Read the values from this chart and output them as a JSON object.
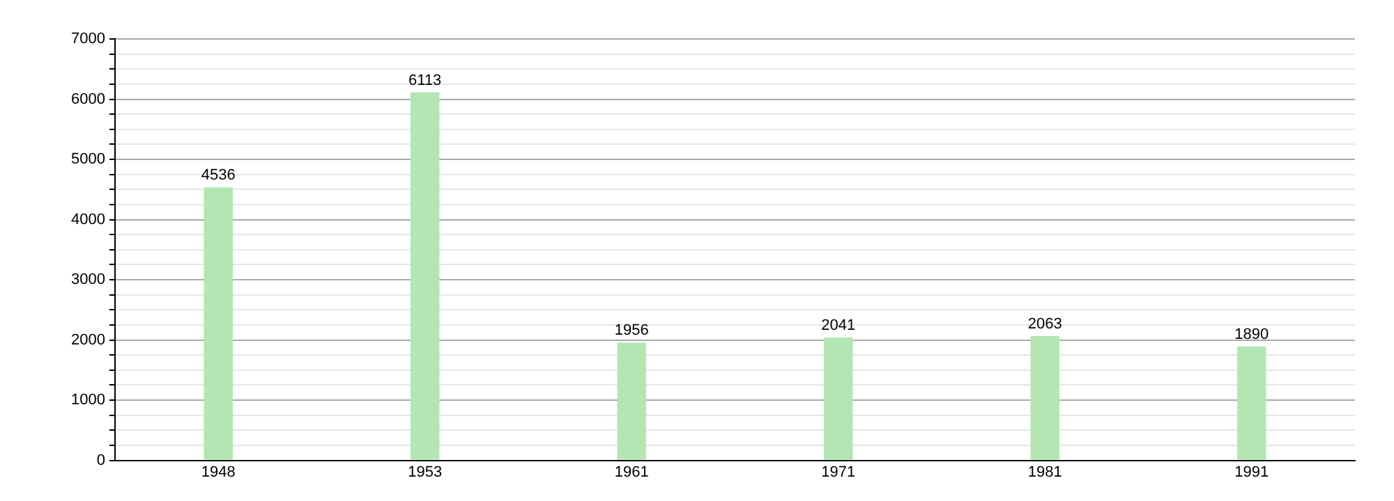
{
  "chart_data": {
    "type": "bar",
    "categories": [
      "1948",
      "1953",
      "1961",
      "1971",
      "1981",
      "1991"
    ],
    "values": [
      4536,
      6113,
      1956,
      2041,
      2063,
      1890
    ],
    "color": "#b3e6b3",
    "ylim": [
      0,
      7000
    ],
    "yticks": [
      0,
      {
        "value": 250,
        "label": null
      },
      {
        "value": 500,
        "label": null
      },
      {
        "value": 750,
        "label": null
      },
      1000,
      {
        "value": 1250,
        "label": null
      },
      {
        "value": 1500,
        "label": null
      },
      {
        "value": 1750,
        "label": null
      },
      2000,
      {
        "value": 2250,
        "label": null
      },
      {
        "value": 2500,
        "label": null
      },
      {
        "value": 2750,
        "label": null
      },
      3000,
      {
        "value": 3250,
        "label": null
      },
      {
        "value": 3500,
        "label": null
      },
      {
        "value": 3750,
        "label": null
      },
      4000,
      {
        "value": 4250,
        "label": null
      },
      {
        "value": 4500,
        "label": null
      },
      {
        "value": 4750,
        "label": null
      },
      5000,
      {
        "value": 5250,
        "label": null
      },
      {
        "value": 5500,
        "label": null
      },
      {
        "value": 5750,
        "label": null
      },
      6000,
      {
        "value": 6250,
        "label": null
      },
      {
        "value": 6500,
        "label": null
      },
      {
        "value": 6750,
        "label": null
      },
      7000
    ],
    "grid": "y",
    "data_labels": true,
    "legend": false
  }
}
